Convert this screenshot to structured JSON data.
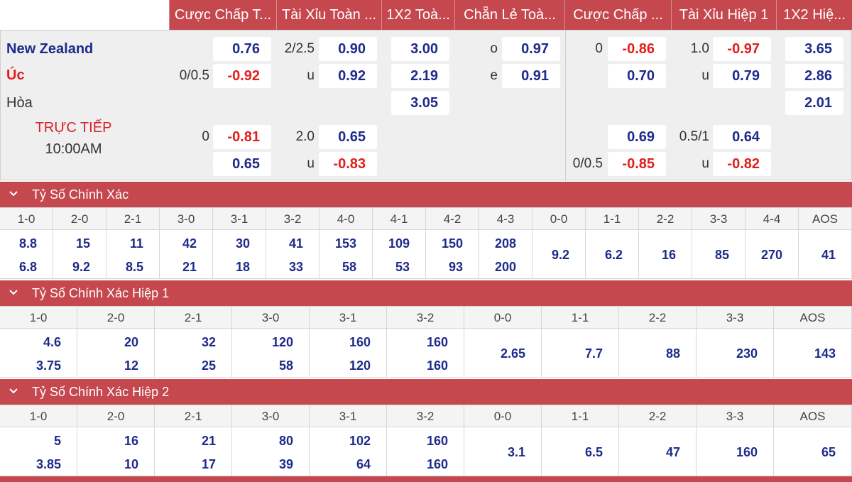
{
  "header": {
    "columns": [
      {
        "label": "Cược Chấp T..."
      },
      {
        "label": "Tài Xỉu Toàn ..."
      },
      {
        "label": "1X2 Toà..."
      },
      {
        "label": "Chẵn Lẻ Toà..."
      },
      {
        "label": "Cược Chấp ..."
      },
      {
        "label": "Tài Xỉu Hiệp 1"
      },
      {
        "label": "1X2 Hiệ..."
      }
    ]
  },
  "match": {
    "home": "New Zealand",
    "away": "Úc",
    "draw": "Hòa",
    "live_label": "TRỰC TIẾP",
    "time": "10:00AM",
    "colors": {
      "blue": "#1e2b8a",
      "red": "#e0201e",
      "accent": "#c5484f"
    },
    "rows": [
      {
        "ah_line": "",
        "ah": "0.76",
        "ou_line": "2/2.5",
        "ou": "0.90",
        "x12": "3.00",
        "oe_line": "o",
        "oe": "0.97",
        "h1_ah_line": "0",
        "h1_ah": "-0.86",
        "h1_ou_line": "1.0",
        "h1_ou": "-0.97",
        "h1_x12": "3.65"
      },
      {
        "ah_line": "0/0.5",
        "ah": "-0.92",
        "ou_line": "u",
        "ou": "0.92",
        "x12": "2.19",
        "oe_line": "e",
        "oe": "0.91",
        "h1_ah_line": "",
        "h1_ah": "0.70",
        "h1_ou_line": "u",
        "h1_ou": "0.79",
        "h1_x12": "2.86"
      },
      {
        "x12": "3.05",
        "h1_x12": "2.01"
      },
      {
        "ah_line": "0",
        "ah": "-0.81",
        "ou_line": "2.0",
        "ou": "0.65",
        "h1_ah_line": "",
        "h1_ah": "0.69",
        "h1_ou_line": "0.5/1",
        "h1_ou": "0.64"
      },
      {
        "ah_line": "",
        "ah": "0.65",
        "ou_line": "u",
        "ou": "-0.83",
        "h1_ah_line": "0/0.5",
        "h1_ah": "-0.85",
        "h1_ou_line": "u",
        "h1_ou": "-0.82"
      }
    ]
  },
  "sections": [
    {
      "title": "Tỷ Số Chính Xác",
      "columns": [
        {
          "score": "1-0",
          "home": "8.8",
          "away": "6.8"
        },
        {
          "score": "2-0",
          "home": "15",
          "away": "9.2"
        },
        {
          "score": "2-1",
          "home": "11",
          "away": "8.5"
        },
        {
          "score": "3-0",
          "home": "42",
          "away": "21"
        },
        {
          "score": "3-1",
          "home": "30",
          "away": "18"
        },
        {
          "score": "3-2",
          "home": "41",
          "away": "33"
        },
        {
          "score": "4-0",
          "home": "153",
          "away": "58"
        },
        {
          "score": "4-1",
          "home": "109",
          "away": "53"
        },
        {
          "score": "4-2",
          "home": "150",
          "away": "93"
        },
        {
          "score": "4-3",
          "home": "208",
          "away": "200"
        },
        {
          "score": "0-0",
          "single": "9.2"
        },
        {
          "score": "1-1",
          "single": "6.2"
        },
        {
          "score": "2-2",
          "single": "16"
        },
        {
          "score": "3-3",
          "single": "85"
        },
        {
          "score": "4-4",
          "single": "270"
        },
        {
          "score": "AOS",
          "single": "41"
        }
      ]
    },
    {
      "title": "Tỷ Số Chính Xác Hiệp 1",
      "columns": [
        {
          "score": "1-0",
          "home": "4.6",
          "away": "3.75"
        },
        {
          "score": "2-0",
          "home": "20",
          "away": "12"
        },
        {
          "score": "2-1",
          "home": "32",
          "away": "25"
        },
        {
          "score": "3-0",
          "home": "120",
          "away": "58"
        },
        {
          "score": "3-1",
          "home": "160",
          "away": "120"
        },
        {
          "score": "3-2",
          "home": "160",
          "away": "160"
        },
        {
          "score": "0-0",
          "single": "2.65"
        },
        {
          "score": "1-1",
          "single": "7.7"
        },
        {
          "score": "2-2",
          "single": "88"
        },
        {
          "score": "3-3",
          "single": "230"
        },
        {
          "score": "AOS",
          "single": "143"
        }
      ]
    },
    {
      "title": "Tỷ Số Chính Xác Hiệp 2",
      "columns": [
        {
          "score": "1-0",
          "home": "5",
          "away": "3.85"
        },
        {
          "score": "2-0",
          "home": "16",
          "away": "10"
        },
        {
          "score": "2-1",
          "home": "21",
          "away": "17"
        },
        {
          "score": "3-0",
          "home": "80",
          "away": "39"
        },
        {
          "score": "3-1",
          "home": "102",
          "away": "64"
        },
        {
          "score": "3-2",
          "home": "160",
          "away": "160"
        },
        {
          "score": "0-0",
          "single": "3.1"
        },
        {
          "score": "1-1",
          "single": "6.5"
        },
        {
          "score": "2-2",
          "single": "47"
        },
        {
          "score": "3-3",
          "single": "160"
        },
        {
          "score": "AOS",
          "single": "65"
        }
      ]
    }
  ]
}
